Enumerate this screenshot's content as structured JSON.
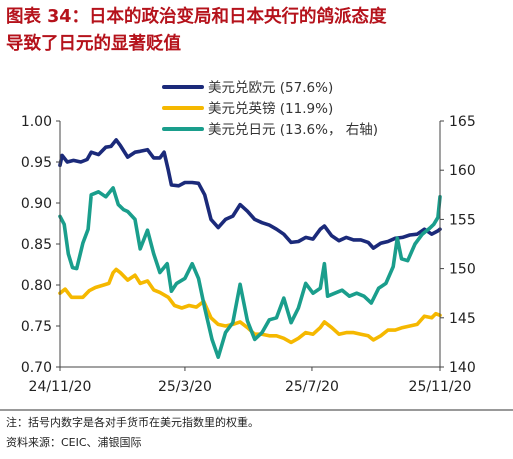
{
  "title": {
    "line1": "图表 34：日本的政治变局和日本央行的鸽派态度",
    "line2": "导致了日元的显著贬值"
  },
  "footnote": "注：括号内数字是各对手货币在美元指数里的权重。",
  "source": "资料来源：CEIC、浦银国际",
  "chart_data": {
    "type": "line",
    "x_ticks": [
      "24/11/20",
      "25/3/20",
      "25/7/20",
      "25/11/20"
    ],
    "x_range": [
      "2024-11-20",
      "2025-11-20"
    ],
    "y_left": {
      "range": [
        0.7,
        1.0
      ],
      "ticks": [
        "0.70",
        "0.75",
        "0.80",
        "0.85",
        "0.90",
        "0.95",
        "1.00"
      ]
    },
    "y_right": {
      "range": [
        140,
        165
      ],
      "ticks": [
        "140",
        "145",
        "150",
        "155",
        "160",
        "165"
      ]
    },
    "grid": false,
    "legend_position": "top-center",
    "series": [
      {
        "name": "美元兑欧元 (57.6%)",
        "color": "#1b2a7a",
        "axis": "left",
        "points": [
          [
            "2024-11-20",
            0.946
          ],
          [
            "2024-11-22",
            0.958
          ],
          [
            "2024-11-27",
            0.95
          ],
          [
            "2024-12-03",
            0.952
          ],
          [
            "2024-12-10",
            0.95
          ],
          [
            "2024-12-16",
            0.953
          ],
          [
            "2024-12-20",
            0.962
          ],
          [
            "2024-12-27",
            0.959
          ],
          [
            "2025-01-03",
            0.968
          ],
          [
            "2025-01-08",
            0.969
          ],
          [
            "2025-01-13",
            0.977
          ],
          [
            "2025-01-17",
            0.97
          ],
          [
            "2025-01-24",
            0.956
          ],
          [
            "2025-01-31",
            0.962
          ],
          [
            "2025-02-05",
            0.963
          ],
          [
            "2025-02-12",
            0.965
          ],
          [
            "2025-02-18",
            0.955
          ],
          [
            "2025-02-24",
            0.955
          ],
          [
            "2025-02-28",
            0.962
          ],
          [
            "2025-03-04",
            0.94
          ],
          [
            "2025-03-07",
            0.922
          ],
          [
            "2025-03-14",
            0.921
          ],
          [
            "2025-03-20",
            0.925
          ],
          [
            "2025-03-27",
            0.925
          ],
          [
            "2025-04-02",
            0.924
          ],
          [
            "2025-04-08",
            0.91
          ],
          [
            "2025-04-14",
            0.88
          ],
          [
            "2025-04-21",
            0.87
          ],
          [
            "2025-04-28",
            0.88
          ],
          [
            "2025-05-05",
            0.884
          ],
          [
            "2025-05-12",
            0.898
          ],
          [
            "2025-05-19",
            0.89
          ],
          [
            "2025-05-26",
            0.88
          ],
          [
            "2025-06-02",
            0.876
          ],
          [
            "2025-06-09",
            0.873
          ],
          [
            "2025-06-16",
            0.868
          ],
          [
            "2025-06-23",
            0.862
          ],
          [
            "2025-06-30",
            0.852
          ],
          [
            "2025-07-07",
            0.853
          ],
          [
            "2025-07-14",
            0.858
          ],
          [
            "2025-07-21",
            0.856
          ],
          [
            "2025-07-28",
            0.868
          ],
          [
            "2025-08-01",
            0.872
          ],
          [
            "2025-08-08",
            0.86
          ],
          [
            "2025-08-15",
            0.854
          ],
          [
            "2025-08-22",
            0.858
          ],
          [
            "2025-08-29",
            0.855
          ],
          [
            "2025-09-05",
            0.855
          ],
          [
            "2025-09-12",
            0.852
          ],
          [
            "2025-09-17",
            0.845
          ],
          [
            "2025-09-24",
            0.851
          ],
          [
            "2025-10-01",
            0.853
          ],
          [
            "2025-10-08",
            0.857
          ],
          [
            "2025-10-15",
            0.858
          ],
          [
            "2025-10-22",
            0.861
          ],
          [
            "2025-10-29",
            0.862
          ],
          [
            "2025-11-05",
            0.868
          ],
          [
            "2025-11-12",
            0.862
          ],
          [
            "2025-11-18",
            0.866
          ],
          [
            "2025-11-20",
            0.868
          ]
        ]
      },
      {
        "name": "美元兑英镑 (11.9%)",
        "color": "#f5b800",
        "axis": "left",
        "points": [
          [
            "2024-11-20",
            0.79
          ],
          [
            "2024-11-25",
            0.795
          ],
          [
            "2024-12-01",
            0.785
          ],
          [
            "2024-12-06",
            0.785
          ],
          [
            "2024-12-12",
            0.785
          ],
          [
            "2024-12-18",
            0.793
          ],
          [
            "2024-12-24",
            0.797
          ],
          [
            "2025-01-01",
            0.8
          ],
          [
            "2025-01-06",
            0.802
          ],
          [
            "2025-01-10",
            0.815
          ],
          [
            "2025-01-13",
            0.819
          ],
          [
            "2025-01-17",
            0.815
          ],
          [
            "2025-01-24",
            0.806
          ],
          [
            "2025-01-31",
            0.812
          ],
          [
            "2025-02-05",
            0.802
          ],
          [
            "2025-02-12",
            0.805
          ],
          [
            "2025-02-18",
            0.794
          ],
          [
            "2025-02-24",
            0.791
          ],
          [
            "2025-03-04",
            0.785
          ],
          [
            "2025-03-10",
            0.775
          ],
          [
            "2025-03-17",
            0.772
          ],
          [
            "2025-03-24",
            0.775
          ],
          [
            "2025-03-31",
            0.773
          ],
          [
            "2025-04-07",
            0.78
          ],
          [
            "2025-04-14",
            0.76
          ],
          [
            "2025-04-21",
            0.752
          ],
          [
            "2025-04-28",
            0.75
          ],
          [
            "2025-05-05",
            0.752
          ],
          [
            "2025-05-12",
            0.755
          ],
          [
            "2025-05-19",
            0.748
          ],
          [
            "2025-05-26",
            0.74
          ],
          [
            "2025-06-02",
            0.74
          ],
          [
            "2025-06-09",
            0.738
          ],
          [
            "2025-06-16",
            0.738
          ],
          [
            "2025-06-23",
            0.735
          ],
          [
            "2025-06-30",
            0.73
          ],
          [
            "2025-07-07",
            0.735
          ],
          [
            "2025-07-14",
            0.742
          ],
          [
            "2025-07-21",
            0.74
          ],
          [
            "2025-07-28",
            0.748
          ],
          [
            "2025-08-01",
            0.755
          ],
          [
            "2025-08-08",
            0.748
          ],
          [
            "2025-08-15",
            0.74
          ],
          [
            "2025-08-22",
            0.742
          ],
          [
            "2025-08-29",
            0.742
          ],
          [
            "2025-09-05",
            0.74
          ],
          [
            "2025-09-12",
            0.738
          ],
          [
            "2025-09-17",
            0.733
          ],
          [
            "2025-09-24",
            0.738
          ],
          [
            "2025-10-01",
            0.745
          ],
          [
            "2025-10-08",
            0.745
          ],
          [
            "2025-10-15",
            0.748
          ],
          [
            "2025-10-22",
            0.75
          ],
          [
            "2025-10-29",
            0.752
          ],
          [
            "2025-11-05",
            0.762
          ],
          [
            "2025-11-12",
            0.76
          ],
          [
            "2025-11-16",
            0.765
          ],
          [
            "2025-11-20",
            0.763
          ]
        ]
      },
      {
        "name": "美元兑日元 (13.6%， 右轴)",
        "color": "#1a9e8c",
        "axis": "right",
        "points": [
          [
            "2024-11-20",
            155.3
          ],
          [
            "2024-11-24",
            154.5
          ],
          [
            "2024-11-28",
            151.5
          ],
          [
            "2024-12-02",
            150.1
          ],
          [
            "2024-12-06",
            150.0
          ],
          [
            "2024-12-12",
            152.6
          ],
          [
            "2024-12-17",
            154.0
          ],
          [
            "2024-12-20",
            157.5
          ],
          [
            "2024-12-27",
            157.8
          ],
          [
            "2025-01-03",
            157.3
          ],
          [
            "2025-01-10",
            158.2
          ],
          [
            "2025-01-15",
            156.5
          ],
          [
            "2025-01-20",
            156.0
          ],
          [
            "2025-01-24",
            155.8
          ],
          [
            "2025-01-31",
            155.0
          ],
          [
            "2025-02-05",
            152.0
          ],
          [
            "2025-02-12",
            153.9
          ],
          [
            "2025-02-18",
            151.5
          ],
          [
            "2025-02-24",
            149.6
          ],
          [
            "2025-03-03",
            150.5
          ],
          [
            "2025-03-07",
            147.7
          ],
          [
            "2025-03-12",
            148.5
          ],
          [
            "2025-03-20",
            149.0
          ],
          [
            "2025-03-27",
            150.5
          ],
          [
            "2025-04-02",
            149.0
          ],
          [
            "2025-04-08",
            146.0
          ],
          [
            "2025-04-15",
            142.8
          ],
          [
            "2025-04-21",
            141.0
          ],
          [
            "2025-04-28",
            143.5
          ],
          [
            "2025-05-05",
            144.5
          ],
          [
            "2025-05-12",
            148.4
          ],
          [
            "2025-05-19",
            144.7
          ],
          [
            "2025-05-26",
            142.8
          ],
          [
            "2025-06-02",
            143.5
          ],
          [
            "2025-06-09",
            144.8
          ],
          [
            "2025-06-16",
            145.0
          ],
          [
            "2025-06-23",
            147.0
          ],
          [
            "2025-06-30",
            144.5
          ],
          [
            "2025-07-07",
            146.0
          ],
          [
            "2025-07-14",
            148.5
          ],
          [
            "2025-07-21",
            147.5
          ],
          [
            "2025-07-28",
            148.0
          ],
          [
            "2025-08-01",
            150.5
          ],
          [
            "2025-08-04",
            147.2
          ],
          [
            "2025-08-11",
            147.5
          ],
          [
            "2025-08-18",
            147.8
          ],
          [
            "2025-08-25",
            147.2
          ],
          [
            "2025-09-01",
            147.5
          ],
          [
            "2025-09-08",
            147.2
          ],
          [
            "2025-09-15",
            146.5
          ],
          [
            "2025-09-22",
            148.0
          ],
          [
            "2025-09-29",
            148.5
          ],
          [
            "2025-10-06",
            150.2
          ],
          [
            "2025-10-10",
            153.1
          ],
          [
            "2025-10-14",
            151.0
          ],
          [
            "2025-10-20",
            150.8
          ],
          [
            "2025-10-27",
            152.5
          ],
          [
            "2025-11-03",
            153.5
          ],
          [
            "2025-11-10",
            154.1
          ],
          [
            "2025-11-14",
            154.5
          ],
          [
            "2025-11-18",
            155.2
          ],
          [
            "2025-11-20",
            157.3
          ]
        ]
      }
    ]
  }
}
